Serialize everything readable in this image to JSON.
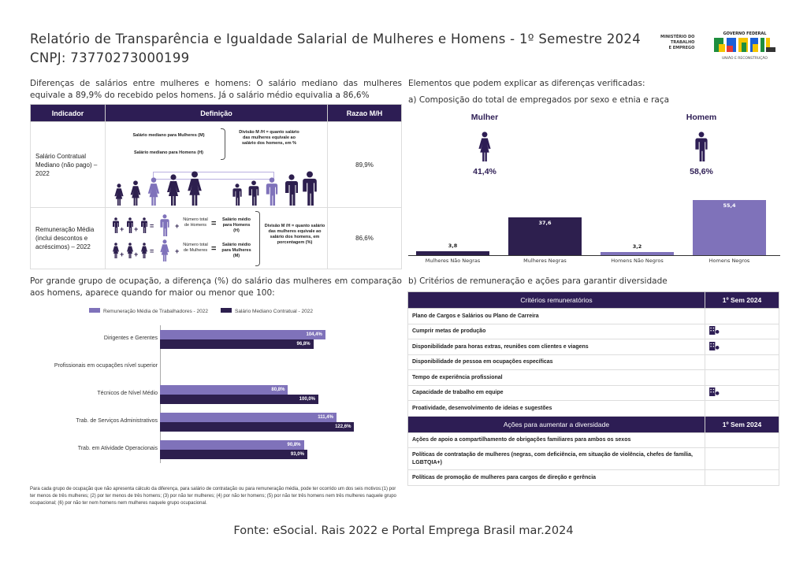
{
  "header": {
    "title": "Relatório de Transparência e Igualdade Salarial de Mulheres e Homens - 1º Semestre 2024",
    "cnpj": "CNPJ: 73770273000199",
    "logo": {
      "ministry": [
        "MINISTÉRIO DO",
        "TRABALHO",
        "E EMPREGO"
      ],
      "gov": "GOVERNO FEDERAL",
      "brand": "BRASIL",
      "tagline": "UNIÃO E RECONSTRUÇÃO"
    }
  },
  "left": {
    "intro": "Diferenças de salários entre mulheres e homens: O salário mediano das mulheres equivale a 89,9% do recebido pelos homens. Já o salário médio equivalia a 86,6%",
    "table": {
      "headers": [
        "Indicador",
        "Definição",
        "Razao M/H"
      ],
      "rows": [
        {
          "indicator": "Salário Contratual Mediano (não pago) – 2022",
          "def": {
            "m": "Salário mediano para Mulheres (M)",
            "h": "Salário mediano para Homens (H)",
            "div": "Divisão M /H = quanto salário das mulheres equivale ao salário dos homens, em %"
          },
          "ratio": "89,9%"
        },
        {
          "indicator": "Remuneração Média (inclui descontos e acréscimos) – 2022",
          "def": {
            "n_h": "Número total de Homens",
            "s_h": "Salário médio para Homens (H)",
            "n_m": "Número total de Mulheres",
            "s_m": "Salário médio para Mulheres (M)",
            "div": "Divisão M /H = quanto salário das mulheres equivale ao salário dos homens, em porcentagem (%)"
          },
          "ratio": "86,6%"
        }
      ]
    },
    "section2": "Por grande grupo de ocupação, a diferença (%) do salário das mulheres em comparação aos homens, aparece quando for maior ou menor que 100:",
    "footnote": "Para cada grupo de ocupação que não apresenta cálculo da diferença, para salário de contratação ou para remuneração média, pode ter ocorrido um dos seis motivos:(1) por ter menos de três mulheres; (2) por ter menos de três homens; (3) por não ter mulheres; (4) por não ter homens; (5) por não ter três homens nem três mulheres naquele grupo ocupacional; (6) por não ter nem homens nem mulheres naquele grupo ocupacional."
  },
  "chart_data": [
    {
      "type": "bar",
      "orientation": "horizontal",
      "categories": [
        "Dirigentes e Gerentes",
        "Profissionais em ocupações nível superior",
        "Técnicos de Nível Médio",
        "Trab. de Serviços Administrativos",
        "Trab. em Atividade Operacionais"
      ],
      "series": [
        {
          "name": "Remuneração Média de Trabalhadores - 2022",
          "color": "#7f72ba",
          "values": [
            104.4,
            null,
            80.8,
            111.4,
            90.8
          ],
          "labels": [
            "104,4%",
            "",
            "80,8%",
            "111,4%",
            "90,8%"
          ]
        },
        {
          "name": "Salário Mediano Contratual - 2022",
          "color": "#2d1f4e",
          "values": [
            96.8,
            null,
            100.0,
            122.6,
            93.0
          ],
          "labels": [
            "96,8%",
            "",
            "100,0%",
            "122,6%",
            "93,0%"
          ]
        }
      ],
      "legend": "top"
    },
    {
      "type": "bar",
      "title": "a) Composição do total de empregados por sexo e etnia e raça",
      "categories": [
        "Mulheres Não Negras",
        "Mulheres Negras",
        "Homens Não Negros",
        "Homens Negros"
      ],
      "values": [
        3.8,
        37.6,
        3.2,
        55.4
      ],
      "labels": [
        "3,8",
        "37,6",
        "3,2",
        "55,4"
      ],
      "colors": [
        "#2d1f4e",
        "#2d1f4e",
        "#7f72ba",
        "#7f72ba"
      ]
    }
  ],
  "right": {
    "heading": "Elementos que podem explicar as diferenças verificadas:",
    "subtitle_a": "a) Composição do total de empregados por sexo e etnia e raça",
    "mulher": {
      "label": "Mulher",
      "pct": "41,4%"
    },
    "homem": {
      "label": "Homem",
      "pct": "58,6%"
    },
    "subtitle_b": "b) Critérios de remuneração e ações para garantir diversidade",
    "criteria": {
      "header": "Critérios remuneratórios",
      "col": "1º Sem 2024",
      "rows": [
        {
          "label": "Plano de Cargos e Salários ou Plano de Carreira",
          "checked": false
        },
        {
          "label": "Cumprir metas de produção",
          "checked": true
        },
        {
          "label": "Disponibilidade para horas extras, reuniões com clientes e viagens",
          "checked": true
        },
        {
          "label": "Disponibilidade de pessoa em ocupações específicas",
          "checked": false
        },
        {
          "label": "Tempo de experiência profissional",
          "checked": false
        },
        {
          "label": "Capacidade de trabalho em equipe",
          "checked": true
        },
        {
          "label": "Proatividade, desenvolvimento de ideias e sugestões",
          "checked": false
        }
      ]
    },
    "diversity": {
      "header": "Ações para aumentar a diversidade",
      "col": "1º Sem 2024",
      "rows": [
        {
          "label": "Ações de apoio a compartilhamento de obrigações familiares para ambos os sexos",
          "checked": false
        },
        {
          "label": "Políticas de contratação de mulheres (negras, com deficiência, em situação de violência, chefes de família, LGBTQIA+)",
          "checked": false
        },
        {
          "label": "Políticas de promoção de mulheres para cargos de direção e gerência",
          "checked": false
        }
      ]
    },
    "accent": "#2d1d54",
    "icon": "company-icon"
  },
  "footer": {
    "source": "Fonte: eSocial. Rais 2022 e Portal Emprega Brasil mar.2024"
  }
}
